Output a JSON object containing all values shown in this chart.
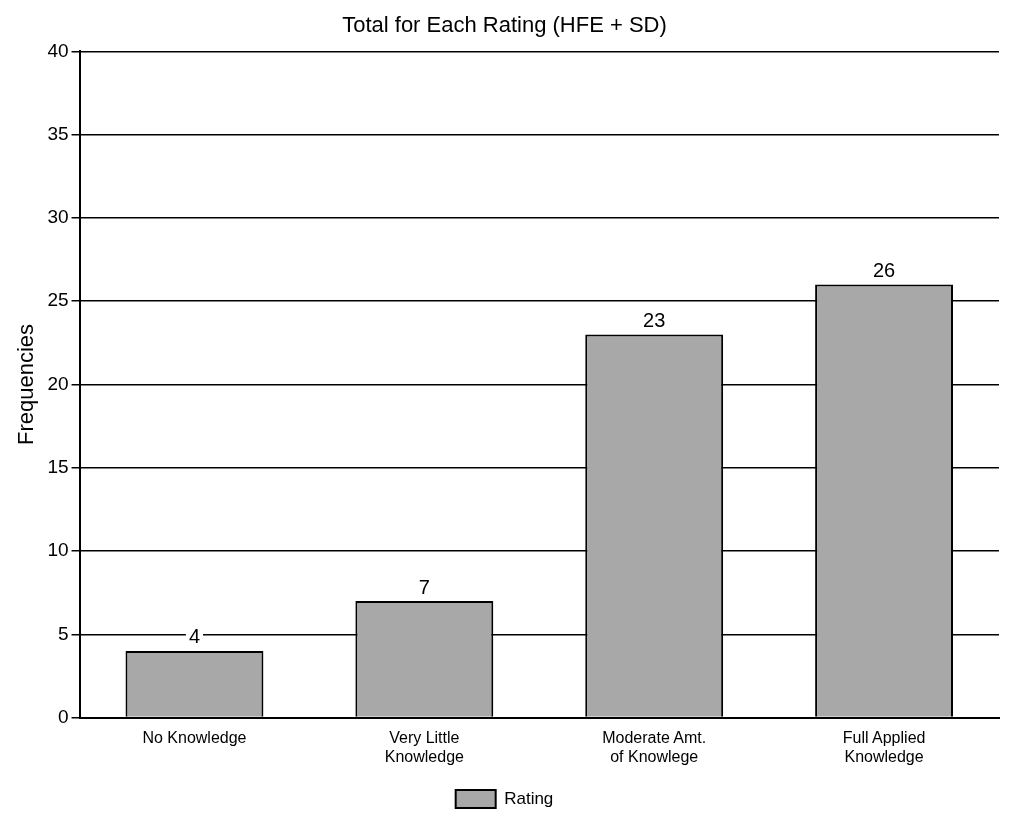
{
  "chart_data": {
    "type": "bar",
    "title": "Total for Each Rating (HFE + SD)",
    "ylabel": "Frequencies",
    "categories": [
      "No Knowledge",
      "Very Little Knowledge",
      "Moderate Amt. of Knowlege",
      "Full Applied Knowledge"
    ],
    "series": [
      {
        "name": "Rating",
        "color": "#a8a8a8",
        "values": [
          4,
          7,
          23,
          26
        ]
      }
    ],
    "ylim": [
      0,
      40
    ],
    "yticks": [
      0,
      5,
      10,
      15,
      20,
      25,
      30,
      35,
      40
    ],
    "grid": "y",
    "legend": "bottom",
    "data_labels": true
  }
}
